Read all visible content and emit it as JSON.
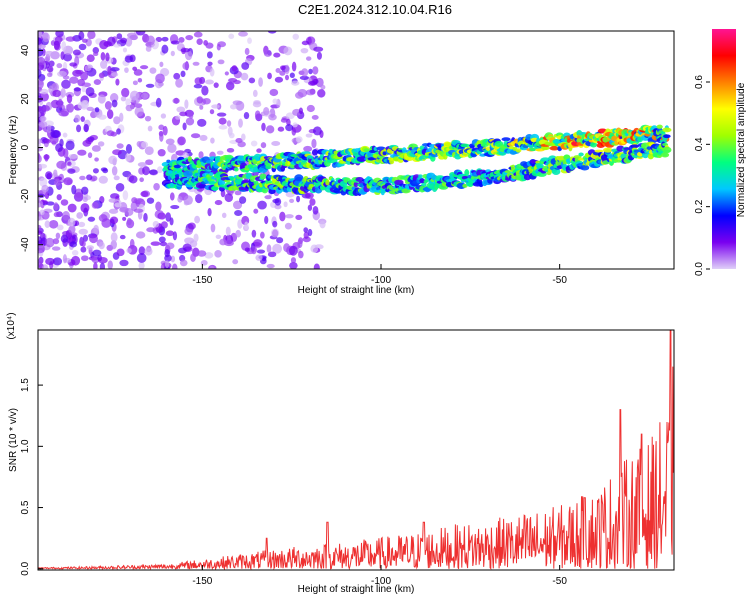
{
  "title": "C2E1.2024.312.10.04.R16",
  "chart_data": [
    {
      "type": "heatmap",
      "xlabel": "Height of straight line (km)",
      "ylabel": "Frequency (Hz)",
      "xlim": [
        -196,
        -18
      ],
      "ylim": [
        -50,
        48
      ],
      "x_ticks": [
        -150,
        -100,
        -50
      ],
      "y_ticks": [
        -40,
        -20,
        0,
        20,
        40
      ],
      "colorbar": {
        "label": "Normalized spectral amplitude",
        "range": [
          0.0,
          0.77
        ],
        "ticks": [
          0.0,
          0.2,
          0.4,
          0.6
        ],
        "colors": [
          "#e0d0f8",
          "#7a00f0",
          "#0000ff",
          "#00c8ff",
          "#00ff80",
          "#a0ff00",
          "#ffff00",
          "#ff8000",
          "#ff0000",
          "#ff1493"
        ]
      },
      "bands": [
        {
          "name": "main",
          "x": [
            -160,
            -130,
            -100,
            -70,
            -45,
            -20
          ],
          "y": [
            -8,
            -6,
            -3,
            0,
            3,
            6
          ],
          "amplitude": [
            0.35,
            0.4,
            0.4,
            0.45,
            0.6,
            0.55
          ]
        },
        {
          "name": "lower",
          "x": [
            -160,
            -130,
            -100,
            -70,
            -50,
            -20
          ],
          "y": [
            -13,
            -15,
            -16,
            -12,
            -7,
            0
          ],
          "amplitude": [
            0.3,
            0.4,
            0.35,
            0.35,
            0.4,
            0.45
          ]
        }
      ],
      "grid": false
    },
    {
      "type": "line",
      "xlabel": "Height of straight line (km)",
      "ylabel": "SNR (10 * v/v)",
      "y_multiplier": "(x10⁴)",
      "xlim": [
        -196,
        -18
      ],
      "ylim": [
        -0.01,
        1.95
      ],
      "x_ticks": [
        -150,
        -100,
        -50
      ],
      "y_ticks": [
        0.0,
        0.5,
        1.0,
        1.5
      ],
      "color": "#ee3030",
      "envelope": {
        "x": [
          -196,
          -180,
          -160,
          -150,
          -140,
          -130,
          -120,
          -110,
          -100,
          -90,
          -80,
          -70,
          -60,
          -50,
          -40,
          -35,
          -30,
          -25,
          -20,
          -18
        ],
        "y": [
          0.01,
          0.02,
          0.04,
          0.08,
          0.12,
          0.16,
          0.2,
          0.22,
          0.26,
          0.3,
          0.36,
          0.4,
          0.46,
          0.52,
          0.65,
          0.8,
          0.95,
          1.05,
          1.3,
          1.9
        ]
      },
      "peaks": [
        {
          "x": -132,
          "y": 0.25
        },
        {
          "x": -115,
          "y": 0.38
        },
        {
          "x": -88,
          "y": 0.38
        },
        {
          "x": -43,
          "y": 0.58
        },
        {
          "x": -33,
          "y": 1.3
        },
        {
          "x": -27,
          "y": 1.1
        },
        {
          "x": -19,
          "y": 1.95
        }
      ],
      "grid": false
    }
  ]
}
